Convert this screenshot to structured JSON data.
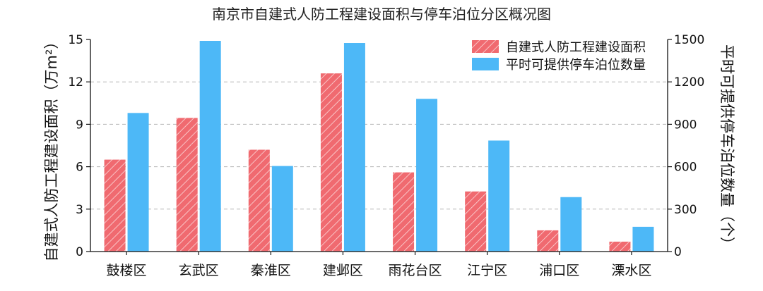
{
  "chart_data": {
    "type": "bar",
    "title": "南京市自建式人防工程建设面积与停车泊位分区概况图",
    "categories": [
      "鼓楼区",
      "玄武区",
      "秦淮区",
      "建邺区",
      "雨花台区",
      "江宁区",
      "浦口区",
      "溧水区"
    ],
    "series": [
      {
        "name": "自建式人防工程建设面积",
        "axis": "left",
        "values": [
          6.5,
          9.45,
          7.2,
          12.6,
          5.6,
          4.25,
          1.5,
          0.7
        ],
        "color": "#f06a70",
        "pattern": "diagonal-hatch"
      },
      {
        "name": "平时可提供停车泊位数量",
        "axis": "right",
        "values": [
          980,
          1490,
          605,
          1475,
          1080,
          785,
          385,
          175
        ],
        "color": "#4db8f7"
      }
    ],
    "ylabel": "自建式人防工程建设面积（万m²）",
    "y2label": "平时可提供停车泊位数量（个）",
    "ylim": [
      0,
      15
    ],
    "y2lim": [
      0,
      1500
    ],
    "yticks": [
      0,
      3,
      6,
      9,
      12,
      15
    ],
    "y2ticks": [
      0,
      300,
      600,
      900,
      1200,
      1500
    ],
    "grid": true,
    "grid_style": "dashed",
    "legend_position": "top-right"
  }
}
